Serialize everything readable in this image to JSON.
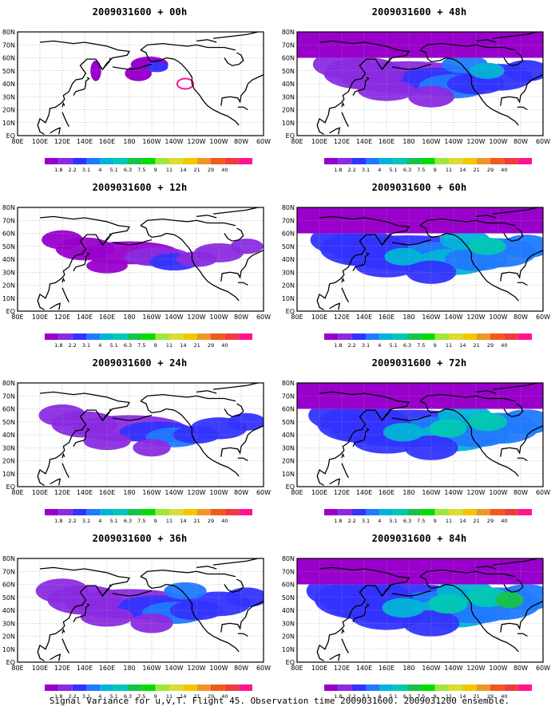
{
  "panels": [
    {
      "title": "2009031600 + 00h",
      "intensity": 0.0
    },
    {
      "title": "2009031600 + 48h",
      "intensity": 0.62
    },
    {
      "title": "2009031600 + 12h",
      "intensity": 0.2
    },
    {
      "title": "2009031600 + 60h",
      "intensity": 0.75
    },
    {
      "title": "2009031600 + 24h",
      "intensity": 0.35
    },
    {
      "title": "2009031600 + 72h",
      "intensity": 0.85
    },
    {
      "title": "2009031600 + 36h",
      "intensity": 0.5
    },
    {
      "title": "2009031600 + 84h",
      "intensity": 0.95
    }
  ],
  "lon_labels": [
    "80E",
    "100E",
    "120E",
    "140E",
    "160E",
    "180",
    "160W",
    "140W",
    "120W",
    "100W",
    "80W",
    "60W"
  ],
  "lat_labels": [
    "80N",
    "70N",
    "60N",
    "50N",
    "40N",
    "30N",
    "20N",
    "10N",
    "EQ"
  ],
  "colorbar": {
    "colors": [
      "#9900cc",
      "#8a2be2",
      "#3333ff",
      "#1f7aff",
      "#00b4d8",
      "#00c8b4",
      "#16c34a",
      "#00dd00",
      "#a0e63c",
      "#dcdc32",
      "#f0c800",
      "#f09628",
      "#f05a1e",
      "#f03c3c",
      "#ff1493"
    ],
    "labels": [
      "1.8",
      "2.2",
      "3.1",
      "4",
      "5.1",
      "6.3",
      "7.5",
      "9",
      "11",
      "14",
      "21",
      "29",
      "40"
    ]
  },
  "caption": "Signal Variance for u,v,T. Flight 45. Observation time 2009031600. 2009031200 ensemble."
}
